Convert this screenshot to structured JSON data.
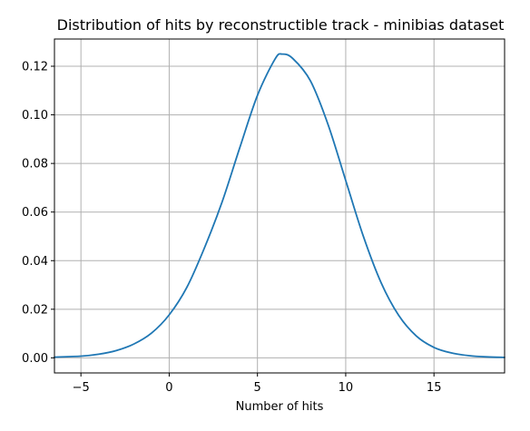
{
  "chart_data": {
    "type": "line",
    "title": "Distribution of hits by reconstructible track - minibias dataset",
    "xlabel": "Number of hits",
    "ylabel": "",
    "xlim": [
      -6.5,
      19
    ],
    "ylim": [
      -0.0062,
      0.1312
    ],
    "grid": true,
    "x_ticks": [
      -5,
      0,
      5,
      10,
      15
    ],
    "x_tick_labels": [
      "−5",
      "0",
      "5",
      "10",
      "15"
    ],
    "y_ticks": [
      0.0,
      0.02,
      0.04,
      0.06,
      0.08,
      0.1,
      0.12
    ],
    "y_tick_labels": [
      "0.00",
      "0.02",
      "0.04",
      "0.06",
      "0.08",
      "0.10",
      "0.12"
    ],
    "series": [
      {
        "color": "#1f77b4",
        "x": [
          -6.5,
          -5,
          -4,
          -3,
          -2,
          -1,
          0,
          1,
          2,
          3,
          4,
          5,
          6,
          6.4,
          7,
          8,
          9,
          10,
          11,
          12,
          13,
          14,
          15,
          16,
          17,
          18,
          19
        ],
        "y": [
          0.0003,
          0.0007,
          0.0015,
          0.003,
          0.0057,
          0.0102,
          0.0177,
          0.029,
          0.0453,
          0.0642,
          0.0865,
          0.108,
          0.123,
          0.125,
          0.1232,
          0.114,
          0.096,
          0.073,
          0.05,
          0.031,
          0.0175,
          0.009,
          0.0043,
          0.002,
          0.0009,
          0.0004,
          0.0002
        ]
      }
    ]
  }
}
